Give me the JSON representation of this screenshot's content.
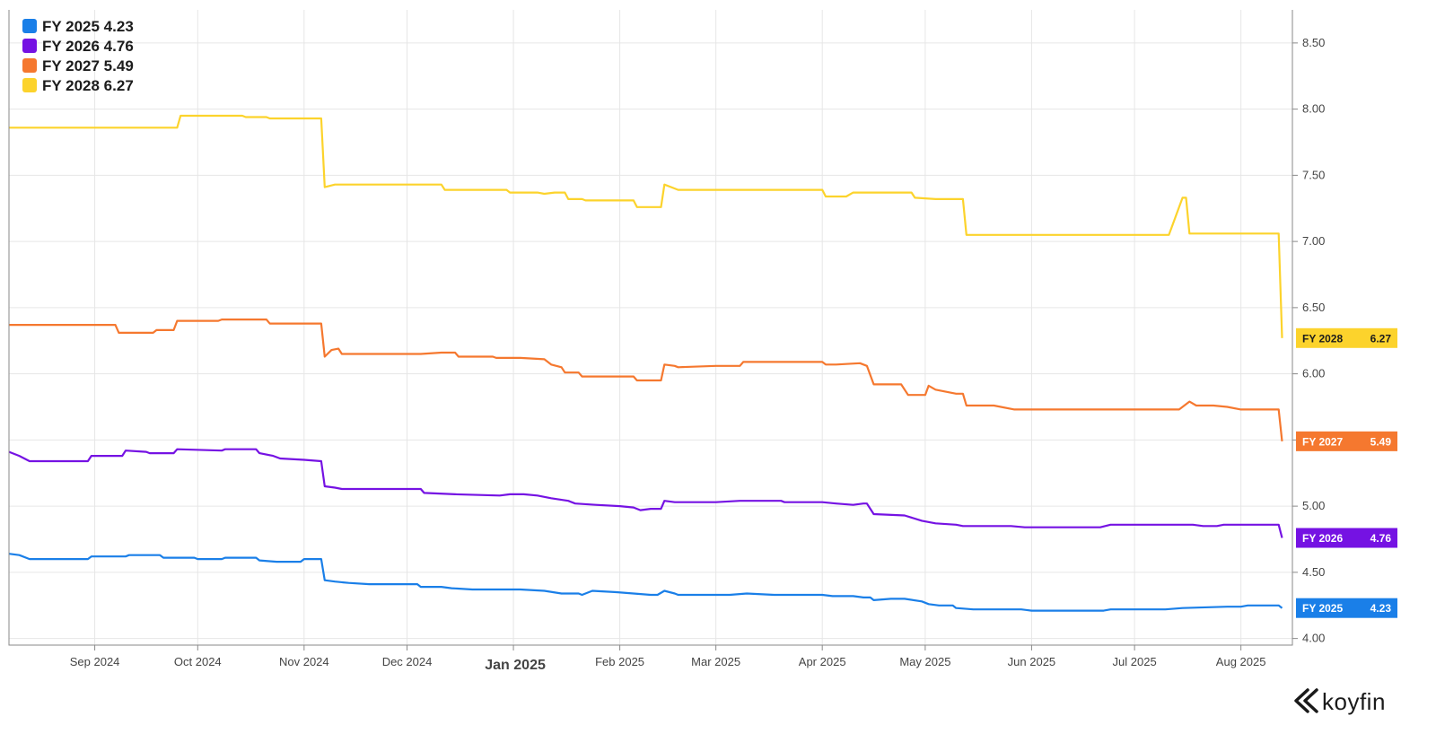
{
  "chart_data": {
    "type": "line",
    "title": "",
    "xlabel": "",
    "ylabel": "",
    "ylim": [
      3.95,
      8.75
    ],
    "xlim": [
      "2024-08-07",
      "2025-08-16"
    ],
    "x_ticks": [
      {
        "date": "2024-09-01",
        "label": "Sep 2024",
        "major": false
      },
      {
        "date": "2024-10-01",
        "label": "Oct 2024",
        "major": false
      },
      {
        "date": "2024-11-01",
        "label": "Nov 2024",
        "major": false
      },
      {
        "date": "2024-12-01",
        "label": "Dec 2024",
        "major": false
      },
      {
        "date": "2025-01-01",
        "label": "Jan 2025",
        "major": true
      },
      {
        "date": "2025-02-01",
        "label": "Feb 2025",
        "major": false
      },
      {
        "date": "2025-03-01",
        "label": "Mar 2025",
        "major": false
      },
      {
        "date": "2025-04-01",
        "label": "Apr 2025",
        "major": false
      },
      {
        "date": "2025-05-01",
        "label": "May 2025",
        "major": false
      },
      {
        "date": "2025-06-01",
        "label": "Jun 2025",
        "major": false
      },
      {
        "date": "2025-07-01",
        "label": "Jul 2025",
        "major": false
      },
      {
        "date": "2025-08-01",
        "label": "Aug 2025",
        "major": false
      }
    ],
    "y_ticks": [
      "4.00",
      "4.50",
      "5.00",
      "5.50",
      "6.00",
      "6.50",
      "7.00",
      "7.50",
      "8.00",
      "8.50"
    ],
    "legend_position": "top-left",
    "series": [
      {
        "name": "FY 2025",
        "last": "4.23",
        "color": "#1a7fe8",
        "points": [
          [
            "2024-08-07",
            4.64
          ],
          [
            "2024-08-10",
            4.63
          ],
          [
            "2024-08-13",
            4.6
          ],
          [
            "2024-08-30",
            4.6
          ],
          [
            "2024-08-31",
            4.62
          ],
          [
            "2024-09-10",
            4.62
          ],
          [
            "2024-09-11",
            4.63
          ],
          [
            "2024-09-20",
            4.63
          ],
          [
            "2024-09-21",
            4.61
          ],
          [
            "2024-09-30",
            4.61
          ],
          [
            "2024-10-01",
            4.6
          ],
          [
            "2024-10-08",
            4.6
          ],
          [
            "2024-10-09",
            4.61
          ],
          [
            "2024-10-18",
            4.61
          ],
          [
            "2024-10-19",
            4.59
          ],
          [
            "2024-10-24",
            4.58
          ],
          [
            "2024-10-31",
            4.58
          ],
          [
            "2024-11-01",
            4.6
          ],
          [
            "2024-11-06",
            4.6
          ],
          [
            "2024-11-07",
            4.44
          ],
          [
            "2024-11-10",
            4.43
          ],
          [
            "2024-11-14",
            4.42
          ],
          [
            "2024-11-20",
            4.41
          ],
          [
            "2024-12-04",
            4.41
          ],
          [
            "2024-12-05",
            4.39
          ],
          [
            "2024-12-11",
            4.39
          ],
          [
            "2024-12-14",
            4.38
          ],
          [
            "2024-12-20",
            4.37
          ],
          [
            "2024-12-31",
            4.37
          ],
          [
            "2025-01-03",
            4.37
          ],
          [
            "2025-01-10",
            4.36
          ],
          [
            "2025-01-15",
            4.34
          ],
          [
            "2025-01-20",
            4.34
          ],
          [
            "2025-01-21",
            4.33
          ],
          [
            "2025-01-24",
            4.36
          ],
          [
            "2025-01-31",
            4.35
          ],
          [
            "2025-02-05",
            4.34
          ],
          [
            "2025-02-10",
            4.33
          ],
          [
            "2025-02-12",
            4.33
          ],
          [
            "2025-02-14",
            4.36
          ],
          [
            "2025-02-17",
            4.34
          ],
          [
            "2025-02-18",
            4.33
          ],
          [
            "2025-03-05",
            4.33
          ],
          [
            "2025-03-10",
            4.34
          ],
          [
            "2025-03-18",
            4.33
          ],
          [
            "2025-04-01",
            4.33
          ],
          [
            "2025-04-04",
            4.32
          ],
          [
            "2025-04-10",
            4.32
          ],
          [
            "2025-04-13",
            4.31
          ],
          [
            "2025-04-15",
            4.31
          ],
          [
            "2025-04-16",
            4.29
          ],
          [
            "2025-04-21",
            4.3
          ],
          [
            "2025-04-25",
            4.3
          ],
          [
            "2025-04-30",
            4.28
          ],
          [
            "2025-05-02",
            4.26
          ],
          [
            "2025-05-05",
            4.25
          ],
          [
            "2025-05-09",
            4.25
          ],
          [
            "2025-05-10",
            4.23
          ],
          [
            "2025-05-15",
            4.22
          ],
          [
            "2025-05-29",
            4.22
          ],
          [
            "2025-06-01",
            4.21
          ],
          [
            "2025-06-22",
            4.21
          ],
          [
            "2025-06-24",
            4.22
          ],
          [
            "2025-07-10",
            4.22
          ],
          [
            "2025-07-15",
            4.23
          ],
          [
            "2025-07-28",
            4.24
          ],
          [
            "2025-08-01",
            4.24
          ],
          [
            "2025-08-03",
            4.25
          ],
          [
            "2025-08-12",
            4.25
          ],
          [
            "2025-08-13",
            4.23
          ]
        ]
      },
      {
        "name": "FY 2026",
        "last": "4.76",
        "color": "#7512e3",
        "points": [
          [
            "2024-08-07",
            5.41
          ],
          [
            "2024-08-10",
            5.38
          ],
          [
            "2024-08-13",
            5.34
          ],
          [
            "2024-08-30",
            5.34
          ],
          [
            "2024-08-31",
            5.38
          ],
          [
            "2024-09-09",
            5.38
          ],
          [
            "2024-09-10",
            5.42
          ],
          [
            "2024-09-16",
            5.41
          ],
          [
            "2024-09-17",
            5.4
          ],
          [
            "2024-09-24",
            5.4
          ],
          [
            "2024-09-25",
            5.43
          ],
          [
            "2024-10-08",
            5.42
          ],
          [
            "2024-10-09",
            5.43
          ],
          [
            "2024-10-18",
            5.43
          ],
          [
            "2024-10-19",
            5.4
          ],
          [
            "2024-10-23",
            5.38
          ],
          [
            "2024-10-25",
            5.36
          ],
          [
            "2024-11-01",
            5.35
          ],
          [
            "2024-11-06",
            5.34
          ],
          [
            "2024-11-07",
            5.15
          ],
          [
            "2024-11-10",
            5.14
          ],
          [
            "2024-11-12",
            5.13
          ],
          [
            "2024-12-05",
            5.13
          ],
          [
            "2024-12-06",
            5.1
          ],
          [
            "2024-12-15",
            5.09
          ],
          [
            "2024-12-28",
            5.08
          ],
          [
            "2024-12-31",
            5.09
          ],
          [
            "2025-01-04",
            5.09
          ],
          [
            "2025-01-08",
            5.08
          ],
          [
            "2025-01-12",
            5.06
          ],
          [
            "2025-01-17",
            5.04
          ],
          [
            "2025-01-19",
            5.02
          ],
          [
            "2025-01-25",
            5.01
          ],
          [
            "2025-02-01",
            5.0
          ],
          [
            "2025-02-05",
            4.99
          ],
          [
            "2025-02-07",
            4.97
          ],
          [
            "2025-02-10",
            4.98
          ],
          [
            "2025-02-13",
            4.98
          ],
          [
            "2025-02-14",
            5.04
          ],
          [
            "2025-02-17",
            5.03
          ],
          [
            "2025-03-01",
            5.03
          ],
          [
            "2025-03-08",
            5.04
          ],
          [
            "2025-03-20",
            5.04
          ],
          [
            "2025-03-21",
            5.03
          ],
          [
            "2025-04-01",
            5.03
          ],
          [
            "2025-04-05",
            5.02
          ],
          [
            "2025-04-10",
            5.01
          ],
          [
            "2025-04-13",
            5.02
          ],
          [
            "2025-04-14",
            5.02
          ],
          [
            "2025-04-16",
            4.94
          ],
          [
            "2025-04-25",
            4.93
          ],
          [
            "2025-04-30",
            4.89
          ],
          [
            "2025-05-04",
            4.87
          ],
          [
            "2025-05-10",
            4.86
          ],
          [
            "2025-05-12",
            4.85
          ],
          [
            "2025-05-26",
            4.85
          ],
          [
            "2025-05-30",
            4.84
          ],
          [
            "2025-06-21",
            4.84
          ],
          [
            "2025-06-24",
            4.86
          ],
          [
            "2025-07-14",
            4.86
          ],
          [
            "2025-07-18",
            4.86
          ],
          [
            "2025-07-21",
            4.85
          ],
          [
            "2025-07-25",
            4.85
          ],
          [
            "2025-07-27",
            4.86
          ],
          [
            "2025-08-12",
            4.86
          ],
          [
            "2025-08-13",
            4.76
          ]
        ]
      },
      {
        "name": "FY 2027",
        "last": "5.49",
        "color": "#f5782f",
        "points": [
          [
            "2024-08-07",
            6.37
          ],
          [
            "2024-08-30",
            6.37
          ],
          [
            "2024-09-07",
            6.37
          ],
          [
            "2024-09-08",
            6.31
          ],
          [
            "2024-09-18",
            6.31
          ],
          [
            "2024-09-19",
            6.33
          ],
          [
            "2024-09-24",
            6.33
          ],
          [
            "2024-09-25",
            6.4
          ],
          [
            "2024-10-07",
            6.4
          ],
          [
            "2024-10-08",
            6.41
          ],
          [
            "2024-10-21",
            6.41
          ],
          [
            "2024-10-22",
            6.38
          ],
          [
            "2024-11-06",
            6.38
          ],
          [
            "2024-11-07",
            6.13
          ],
          [
            "2024-11-09",
            6.18
          ],
          [
            "2024-11-11",
            6.19
          ],
          [
            "2024-11-12",
            6.15
          ],
          [
            "2024-12-05",
            6.15
          ],
          [
            "2024-12-11",
            6.16
          ],
          [
            "2024-12-15",
            6.16
          ],
          [
            "2024-12-16",
            6.13
          ],
          [
            "2024-12-26",
            6.13
          ],
          [
            "2024-12-27",
            6.12
          ],
          [
            "2025-01-03",
            6.12
          ],
          [
            "2025-01-10",
            6.11
          ],
          [
            "2025-01-12",
            6.07
          ],
          [
            "2025-01-15",
            6.05
          ],
          [
            "2025-01-16",
            6.01
          ],
          [
            "2025-01-20",
            6.01
          ],
          [
            "2025-01-21",
            5.98
          ],
          [
            "2025-02-05",
            5.98
          ],
          [
            "2025-02-06",
            5.95
          ],
          [
            "2025-02-13",
            5.95
          ],
          [
            "2025-02-14",
            6.07
          ],
          [
            "2025-02-17",
            6.06
          ],
          [
            "2025-02-18",
            6.05
          ],
          [
            "2025-03-01",
            6.06
          ],
          [
            "2025-03-08",
            6.06
          ],
          [
            "2025-03-09",
            6.09
          ],
          [
            "2025-04-01",
            6.09
          ],
          [
            "2025-04-02",
            6.07
          ],
          [
            "2025-04-05",
            6.07
          ],
          [
            "2025-04-12",
            6.08
          ],
          [
            "2025-04-14",
            6.06
          ],
          [
            "2025-04-16",
            5.92
          ],
          [
            "2025-04-24",
            5.92
          ],
          [
            "2025-04-26",
            5.84
          ],
          [
            "2025-05-01",
            5.84
          ],
          [
            "2025-05-02",
            5.91
          ],
          [
            "2025-05-04",
            5.88
          ],
          [
            "2025-05-08",
            5.86
          ],
          [
            "2025-05-10",
            5.85
          ],
          [
            "2025-05-12",
            5.85
          ],
          [
            "2025-05-13",
            5.76
          ],
          [
            "2025-05-21",
            5.76
          ],
          [
            "2025-05-27",
            5.73
          ],
          [
            "2025-07-10",
            5.73
          ],
          [
            "2025-07-14",
            5.73
          ],
          [
            "2025-07-17",
            5.79
          ],
          [
            "2025-07-19",
            5.76
          ],
          [
            "2025-07-24",
            5.76
          ],
          [
            "2025-07-28",
            5.75
          ],
          [
            "2025-08-01",
            5.73
          ],
          [
            "2025-08-12",
            5.73
          ],
          [
            "2025-08-13",
            5.49
          ]
        ]
      },
      {
        "name": "FY 2028",
        "last": "6.27",
        "color": "#fcd32c",
        "points": [
          [
            "2024-08-07",
            7.86
          ],
          [
            "2024-09-25",
            7.86
          ],
          [
            "2024-09-26",
            7.95
          ],
          [
            "2024-10-14",
            7.95
          ],
          [
            "2024-10-15",
            7.94
          ],
          [
            "2024-10-21",
            7.94
          ],
          [
            "2024-10-22",
            7.93
          ],
          [
            "2024-11-06",
            7.93
          ],
          [
            "2024-11-07",
            7.41
          ],
          [
            "2024-11-10",
            7.43
          ],
          [
            "2024-12-11",
            7.43
          ],
          [
            "2024-12-12",
            7.39
          ],
          [
            "2024-12-30",
            7.39
          ],
          [
            "2024-12-31",
            7.37
          ],
          [
            "2025-01-08",
            7.37
          ],
          [
            "2025-01-10",
            7.36
          ],
          [
            "2025-01-13",
            7.37
          ],
          [
            "2025-01-16",
            7.37
          ],
          [
            "2025-01-17",
            7.32
          ],
          [
            "2025-01-21",
            7.32
          ],
          [
            "2025-01-22",
            7.31
          ],
          [
            "2025-02-05",
            7.31
          ],
          [
            "2025-02-06",
            7.26
          ],
          [
            "2025-02-13",
            7.26
          ],
          [
            "2025-02-14",
            7.43
          ],
          [
            "2025-02-17",
            7.4
          ],
          [
            "2025-02-18",
            7.39
          ],
          [
            "2025-04-01",
            7.39
          ],
          [
            "2025-04-02",
            7.34
          ],
          [
            "2025-04-08",
            7.34
          ],
          [
            "2025-04-10",
            7.37
          ],
          [
            "2025-04-27",
            7.37
          ],
          [
            "2025-04-28",
            7.33
          ],
          [
            "2025-05-04",
            7.32
          ],
          [
            "2025-05-12",
            7.32
          ],
          [
            "2025-05-13",
            7.05
          ],
          [
            "2025-07-11",
            7.05
          ],
          [
            "2025-07-15",
            7.33
          ],
          [
            "2025-07-16",
            7.33
          ],
          [
            "2025-07-17",
            7.06
          ],
          [
            "2025-08-12",
            7.06
          ],
          [
            "2025-08-13",
            6.27
          ]
        ]
      }
    ]
  },
  "brand": {
    "name": "koyfin",
    "accent": "#1a1a1a"
  },
  "colors": {
    "badge_text_dark": "#1c1c1c",
    "badge_text_light": "#ffffff"
  }
}
